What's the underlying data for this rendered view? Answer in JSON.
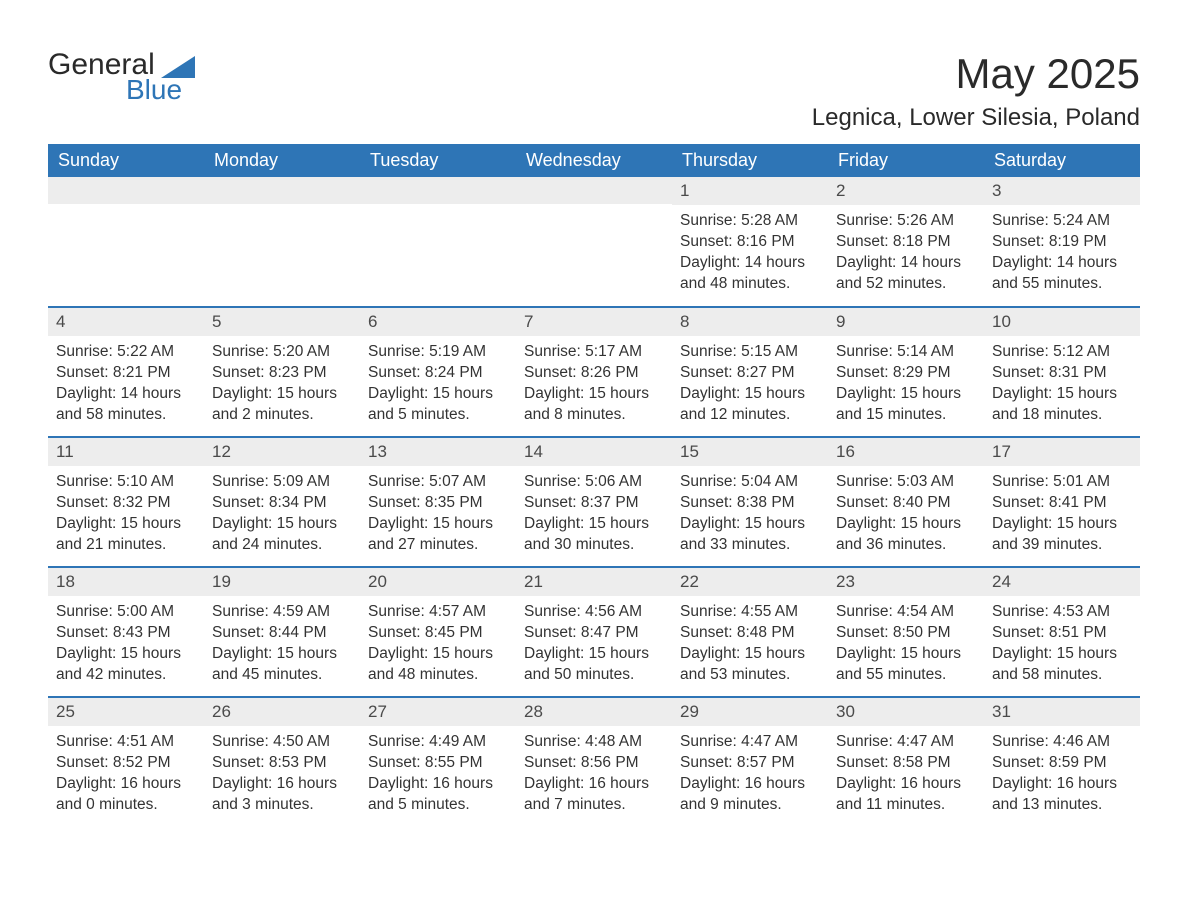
{
  "logo": {
    "word1": "General",
    "word2": "Blue",
    "accent_color": "#2e75b6"
  },
  "title": "May 2025",
  "location": "Legnica, Lower Silesia, Poland",
  "header_bg": "#2e75b6",
  "daynum_bg": "#ededed",
  "weekdays": [
    "Sunday",
    "Monday",
    "Tuesday",
    "Wednesday",
    "Thursday",
    "Friday",
    "Saturday"
  ],
  "blank_cells_before": 4,
  "days": [
    {
      "n": 1,
      "sunrise": "5:28 AM",
      "sunset": "8:16 PM",
      "daylight": "14 hours and 48 minutes."
    },
    {
      "n": 2,
      "sunrise": "5:26 AM",
      "sunset": "8:18 PM",
      "daylight": "14 hours and 52 minutes."
    },
    {
      "n": 3,
      "sunrise": "5:24 AM",
      "sunset": "8:19 PM",
      "daylight": "14 hours and 55 minutes."
    },
    {
      "n": 4,
      "sunrise": "5:22 AM",
      "sunset": "8:21 PM",
      "daylight": "14 hours and 58 minutes."
    },
    {
      "n": 5,
      "sunrise": "5:20 AM",
      "sunset": "8:23 PM",
      "daylight": "15 hours and 2 minutes."
    },
    {
      "n": 6,
      "sunrise": "5:19 AM",
      "sunset": "8:24 PM",
      "daylight": "15 hours and 5 minutes."
    },
    {
      "n": 7,
      "sunrise": "5:17 AM",
      "sunset": "8:26 PM",
      "daylight": "15 hours and 8 minutes."
    },
    {
      "n": 8,
      "sunrise": "5:15 AM",
      "sunset": "8:27 PM",
      "daylight": "15 hours and 12 minutes."
    },
    {
      "n": 9,
      "sunrise": "5:14 AM",
      "sunset": "8:29 PM",
      "daylight": "15 hours and 15 minutes."
    },
    {
      "n": 10,
      "sunrise": "5:12 AM",
      "sunset": "8:31 PM",
      "daylight": "15 hours and 18 minutes."
    },
    {
      "n": 11,
      "sunrise": "5:10 AM",
      "sunset": "8:32 PM",
      "daylight": "15 hours and 21 minutes."
    },
    {
      "n": 12,
      "sunrise": "5:09 AM",
      "sunset": "8:34 PM",
      "daylight": "15 hours and 24 minutes."
    },
    {
      "n": 13,
      "sunrise": "5:07 AM",
      "sunset": "8:35 PM",
      "daylight": "15 hours and 27 minutes."
    },
    {
      "n": 14,
      "sunrise": "5:06 AM",
      "sunset": "8:37 PM",
      "daylight": "15 hours and 30 minutes."
    },
    {
      "n": 15,
      "sunrise": "5:04 AM",
      "sunset": "8:38 PM",
      "daylight": "15 hours and 33 minutes."
    },
    {
      "n": 16,
      "sunrise": "5:03 AM",
      "sunset": "8:40 PM",
      "daylight": "15 hours and 36 minutes."
    },
    {
      "n": 17,
      "sunrise": "5:01 AM",
      "sunset": "8:41 PM",
      "daylight": "15 hours and 39 minutes."
    },
    {
      "n": 18,
      "sunrise": "5:00 AM",
      "sunset": "8:43 PM",
      "daylight": "15 hours and 42 minutes."
    },
    {
      "n": 19,
      "sunrise": "4:59 AM",
      "sunset": "8:44 PM",
      "daylight": "15 hours and 45 minutes."
    },
    {
      "n": 20,
      "sunrise": "4:57 AM",
      "sunset": "8:45 PM",
      "daylight": "15 hours and 48 minutes."
    },
    {
      "n": 21,
      "sunrise": "4:56 AM",
      "sunset": "8:47 PM",
      "daylight": "15 hours and 50 minutes."
    },
    {
      "n": 22,
      "sunrise": "4:55 AM",
      "sunset": "8:48 PM",
      "daylight": "15 hours and 53 minutes."
    },
    {
      "n": 23,
      "sunrise": "4:54 AM",
      "sunset": "8:50 PM",
      "daylight": "15 hours and 55 minutes."
    },
    {
      "n": 24,
      "sunrise": "4:53 AM",
      "sunset": "8:51 PM",
      "daylight": "15 hours and 58 minutes."
    },
    {
      "n": 25,
      "sunrise": "4:51 AM",
      "sunset": "8:52 PM",
      "daylight": "16 hours and 0 minutes."
    },
    {
      "n": 26,
      "sunrise": "4:50 AM",
      "sunset": "8:53 PM",
      "daylight": "16 hours and 3 minutes."
    },
    {
      "n": 27,
      "sunrise": "4:49 AM",
      "sunset": "8:55 PM",
      "daylight": "16 hours and 5 minutes."
    },
    {
      "n": 28,
      "sunrise": "4:48 AM",
      "sunset": "8:56 PM",
      "daylight": "16 hours and 7 minutes."
    },
    {
      "n": 29,
      "sunrise": "4:47 AM",
      "sunset": "8:57 PM",
      "daylight": "16 hours and 9 minutes."
    },
    {
      "n": 30,
      "sunrise": "4:47 AM",
      "sunset": "8:58 PM",
      "daylight": "16 hours and 11 minutes."
    },
    {
      "n": 31,
      "sunrise": "4:46 AM",
      "sunset": "8:59 PM",
      "daylight": "16 hours and 13 minutes."
    }
  ],
  "labels": {
    "sunrise": "Sunrise: ",
    "sunset": "Sunset: ",
    "daylight": "Daylight: "
  }
}
